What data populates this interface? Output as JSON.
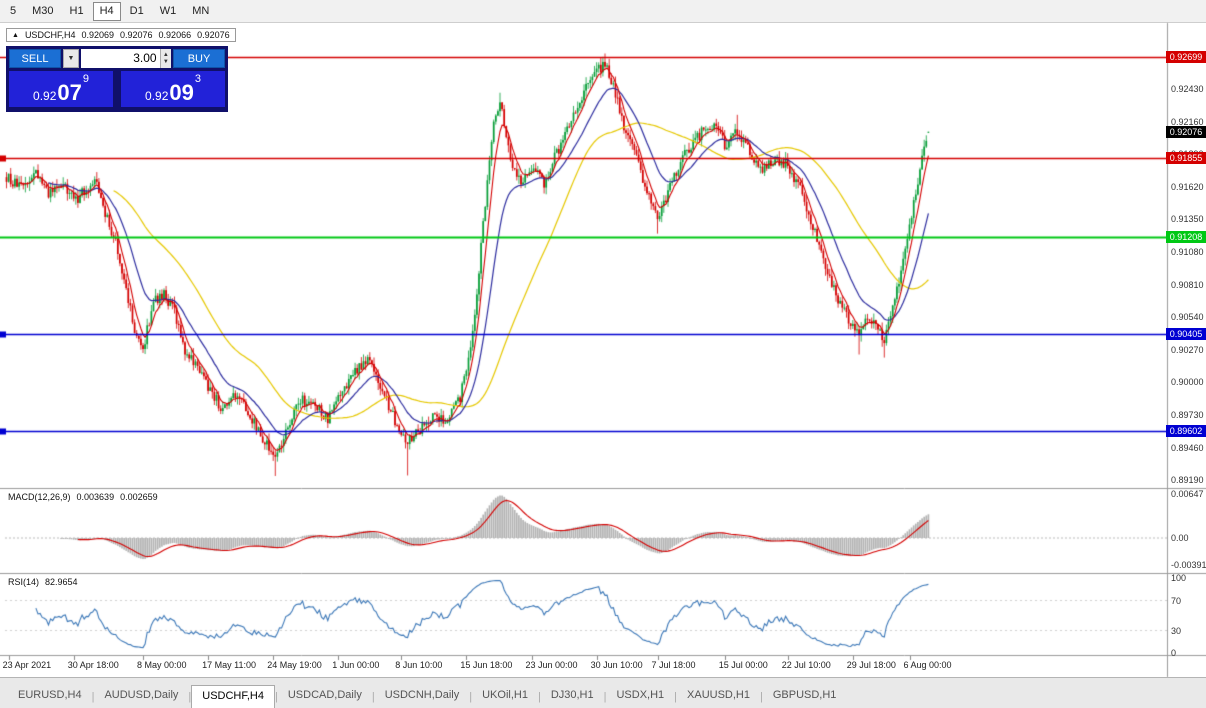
{
  "toolbar": {
    "timeframes": [
      {
        "label": "5",
        "active": false
      },
      {
        "label": "M30",
        "active": false
      },
      {
        "label": "H1",
        "active": false
      },
      {
        "label": "H4",
        "active": true
      },
      {
        "label": "D1",
        "active": false
      },
      {
        "label": "W1",
        "active": false
      },
      {
        "label": "MN",
        "active": false
      }
    ]
  },
  "symbol_bar": {
    "arrow": "▲",
    "symbol": "USDCHF,H4",
    "open": "0.92069",
    "high": "0.92076",
    "low": "0.92066",
    "close": "0.92076"
  },
  "trade_panel": {
    "sell_label": "SELL",
    "buy_label": "BUY",
    "volume": "3.00",
    "dropdown_glyph": "▼",
    "spinner_up": "▲",
    "spinner_down": "▼",
    "sell_price": {
      "base": "0.92",
      "big": "07",
      "sup": "9"
    },
    "buy_price": {
      "base": "0.92",
      "big": "09",
      "sup": "3"
    }
  },
  "price_axis": {
    "ticks": [
      "0.92430",
      "0.92160",
      "0.91890",
      "0.91620",
      "0.91350",
      "0.91080",
      "0.90810",
      "0.90540",
      "0.90270",
      "0.90000",
      "0.89730",
      "0.89460",
      "0.89190"
    ],
    "current": {
      "label": "0.92076",
      "color": "#000000"
    }
  },
  "levels": [
    {
      "label": "0.92699",
      "value": 0.92699,
      "color": "#d40000",
      "width": 1.4,
      "marker": false
    },
    {
      "label": "0.91855",
      "value": 0.91855,
      "color": "#d40000",
      "width": 1.6,
      "marker": true
    },
    {
      "label": "0.91208",
      "value": 0.91208,
      "color": "#00c814",
      "width": 2,
      "marker": false
    },
    {
      "label": "0.90405",
      "value": 0.90405,
      "color": "#0000d2",
      "width": 1.6,
      "marker": true
    },
    {
      "label": "0.89602",
      "value": 0.89602,
      "color": "#0000d2",
      "width": 1.6,
      "marker": true
    }
  ],
  "macd_panel": {
    "title": "MACD(12,26,9)",
    "main_value": "0.003639",
    "signal_value": "0.002659",
    "axis_labels": [
      "0.00647",
      "0.00",
      "-0.00391"
    ]
  },
  "rsi_panel": {
    "title": "RSI(14)",
    "value": "82.9654",
    "axis_labels": [
      "100",
      "70",
      "30",
      "0"
    ]
  },
  "time_axis": {
    "labels": [
      {
        "text": "23 Apr 2021",
        "bar": 1
      },
      {
        "text": "30 Apr 18:00",
        "bar": 32
      },
      {
        "text": "8 May 00:00",
        "bar": 65
      },
      {
        "text": "17 May 11:00",
        "bar": 96
      },
      {
        "text": "24 May 19:00",
        "bar": 127
      },
      {
        "text": "1 Jun 00:00",
        "bar": 158
      },
      {
        "text": "8 Jun 10:00",
        "bar": 188
      },
      {
        "text": "15 Jun 18:00",
        "bar": 219
      },
      {
        "text": "23 Jun 00:00",
        "bar": 250
      },
      {
        "text": "30 Jun 10:00",
        "bar": 281
      },
      {
        "text": "7 Jul 18:00",
        "bar": 310
      },
      {
        "text": "15 Jul 00:00",
        "bar": 342
      },
      {
        "text": "22 Jul 10:00",
        "bar": 372
      },
      {
        "text": "29 Jul 18:00",
        "bar": 403
      },
      {
        "text": "6 Aug 00:00",
        "bar": 430
      }
    ]
  },
  "bottom_tabs": [
    {
      "label": "EURUSD,H4",
      "active": false
    },
    {
      "label": "AUDUSD,Daily",
      "active": false
    },
    {
      "label": "USDCHF,H4",
      "active": true
    },
    {
      "label": "USDCAD,Daily",
      "active": false
    },
    {
      "label": "USDCNH,Daily",
      "active": false
    },
    {
      "label": "UKOil,H1",
      "active": false
    },
    {
      "label": "DJ30,H1",
      "active": false
    },
    {
      "label": "USDX,H1",
      "active": false
    },
    {
      "label": "XAUUSD,H1",
      "active": false
    },
    {
      "label": "GBPUSD,H1",
      "active": false
    }
  ],
  "colors": {
    "up": "#089e38",
    "down": "#d40000",
    "ma_fast_red": "#d40000",
    "ma_mid_blue": "#2e2ea0",
    "ma_slow_yellow": "#e6c800",
    "macd_hist": "#b4b4b4",
    "macd_signal": "#d40000",
    "rsi_line": "#3c78b8",
    "axis_line": "#9a9a9a"
  },
  "chart_data": {
    "type": "candlestick",
    "symbol": "USDCHF",
    "timeframe": "H4",
    "bars": 440,
    "ohlc_current": {
      "open": "0.92069",
      "high": "0.92076",
      "low": "0.92066",
      "close": "0.92076"
    },
    "price_range_visible": [
      0.8918,
      0.9276
    ],
    "indicator_params": {
      "ma_fast": 6,
      "ma_mid": 20,
      "ma_slow": 52,
      "macd": [
        12,
        26,
        9
      ],
      "rsi": 14
    },
    "price_path_anchors": [
      [
        0,
        0.917
      ],
      [
        7,
        0.916
      ],
      [
        14,
        0.9174
      ],
      [
        20,
        0.9155
      ],
      [
        26,
        0.9164
      ],
      [
        33,
        0.9151
      ],
      [
        38,
        0.9161
      ],
      [
        43,
        0.9166
      ],
      [
        46,
        0.9143
      ],
      [
        52,
        0.9118
      ],
      [
        57,
        0.9077
      ],
      [
        62,
        0.9035
      ],
      [
        65,
        0.9027
      ],
      [
        70,
        0.9068
      ],
      [
        75,
        0.9072
      ],
      [
        80,
        0.9058
      ],
      [
        85,
        0.9027
      ],
      [
        90,
        0.9015
      ],
      [
        97,
        0.8994
      ],
      [
        103,
        0.8977
      ],
      [
        109,
        0.899
      ],
      [
        116,
        0.8973
      ],
      [
        122,
        0.8952
      ],
      [
        128,
        0.894
      ],
      [
        134,
        0.8961
      ],
      [
        140,
        0.8986
      ],
      [
        147,
        0.8981
      ],
      [
        153,
        0.8969
      ],
      [
        159,
        0.899
      ],
      [
        166,
        0.901
      ],
      [
        172,
        0.9019
      ],
      [
        178,
        0.8998
      ],
      [
        185,
        0.8969
      ],
      [
        191,
        0.8952
      ],
      [
        197,
        0.8961
      ],
      [
        203,
        0.8973
      ],
      [
        209,
        0.8969
      ],
      [
        216,
        0.8988
      ],
      [
        222,
        0.904
      ],
      [
        227,
        0.913
      ],
      [
        232,
        0.9215
      ],
      [
        235,
        0.9236
      ],
      [
        240,
        0.9185
      ],
      [
        245,
        0.9168
      ],
      [
        250,
        0.9178
      ],
      [
        256,
        0.9165
      ],
      [
        262,
        0.919
      ],
      [
        268,
        0.9212
      ],
      [
        274,
        0.9238
      ],
      [
        280,
        0.9254
      ],
      [
        285,
        0.9266
      ],
      [
        290,
        0.924
      ],
      [
        295,
        0.9206
      ],
      [
        300,
        0.9186
      ],
      [
        305,
        0.9156
      ],
      [
        310,
        0.9136
      ],
      [
        316,
        0.9162
      ],
      [
        322,
        0.9186
      ],
      [
        328,
        0.92
      ],
      [
        334,
        0.9214
      ],
      [
        340,
        0.9206
      ],
      [
        342,
        0.9196
      ],
      [
        348,
        0.9208
      ],
      [
        354,
        0.919
      ],
      [
        360,
        0.9176
      ],
      [
        366,
        0.9186
      ],
      [
        372,
        0.918
      ],
      [
        378,
        0.916
      ],
      [
        384,
        0.913
      ],
      [
        390,
        0.9096
      ],
      [
        396,
        0.9066
      ],
      [
        402,
        0.905
      ],
      [
        406,
        0.9038
      ],
      [
        410,
        0.9056
      ],
      [
        414,
        0.9046
      ],
      [
        418,
        0.9036
      ],
      [
        422,
        0.906
      ],
      [
        426,
        0.909
      ],
      [
        430,
        0.913
      ],
      [
        434,
        0.9164
      ],
      [
        437,
        0.9194
      ],
      [
        439,
        0.92076
      ]
    ],
    "wick_events": [
      [
        128,
        -0.0016
      ],
      [
        191,
        -0.0026
      ],
      [
        235,
        0.0008
      ],
      [
        285,
        0.0007
      ],
      [
        310,
        -0.0012
      ],
      [
        348,
        0.0012
      ],
      [
        406,
        -0.0016
      ],
      [
        418,
        -0.0012
      ]
    ],
    "horizontal_lines": [
      0.92699,
      0.91855,
      0.91208,
      0.90405,
      0.89602
    ],
    "current_price": 0.92076
  }
}
